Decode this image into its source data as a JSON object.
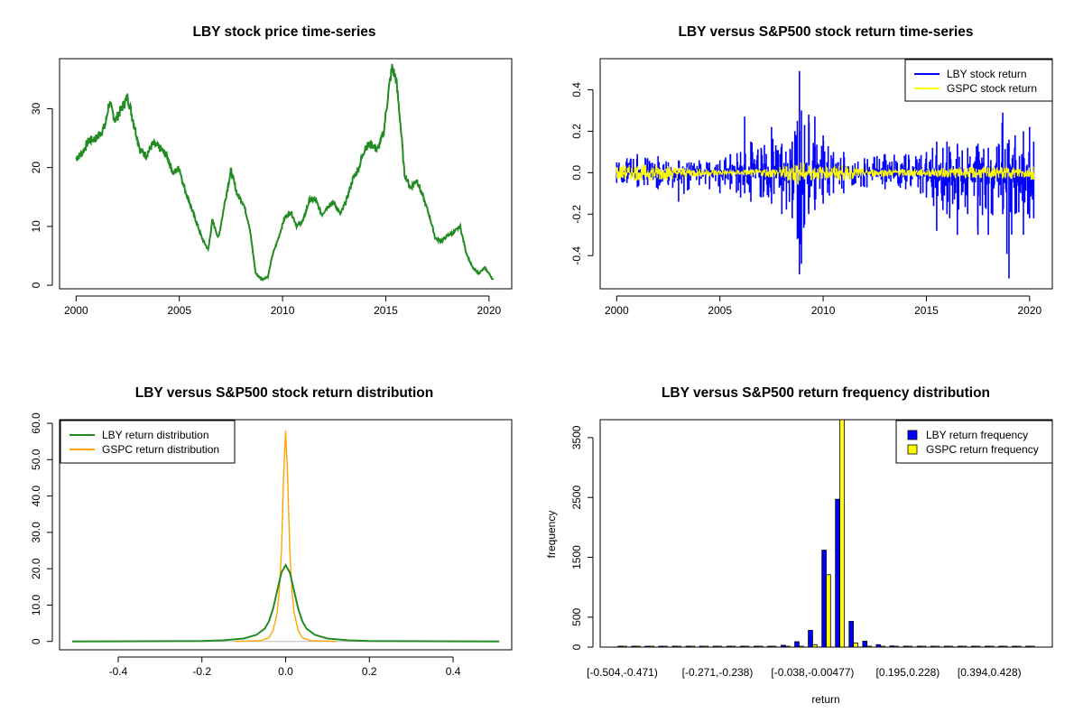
{
  "chart_data": [
    {
      "type": "line",
      "title": "LBY stock price time-series",
      "xlabel": "",
      "ylabel": "",
      "xlim": [
        1999.2,
        2021.1
      ],
      "ylim": [
        -0.6,
        38.5
      ],
      "x_ticks": [
        2000,
        2005,
        2010,
        2015,
        2020
      ],
      "y_ticks": [
        0,
        10,
        20,
        30
      ],
      "series": [
        {
          "color": "#228B22",
          "x": [
            2000.0,
            2000.3,
            2000.6,
            2001.0,
            2001.4,
            2001.6,
            2001.9,
            2002.2,
            2002.5,
            2002.8,
            2003.1,
            2003.4,
            2003.7,
            2004.0,
            2004.4,
            2004.7,
            2005.0,
            2005.2,
            2005.5,
            2005.8,
            2006.1,
            2006.4,
            2006.6,
            2006.9,
            2007.2,
            2007.5,
            2007.8,
            2008.1,
            2008.4,
            2008.7,
            2009.0,
            2009.3,
            2009.5,
            2009.8,
            2010.1,
            2010.4,
            2010.7,
            2011.0,
            2011.3,
            2011.6,
            2011.9,
            2012.2,
            2012.5,
            2012.8,
            2013.1,
            2013.4,
            2013.7,
            2014.0,
            2014.3,
            2014.6,
            2014.9,
            2015.1,
            2015.3,
            2015.5,
            2015.7,
            2015.9,
            2016.2,
            2016.5,
            2016.8,
            2017.1,
            2017.4,
            2017.7,
            2018.0,
            2018.3,
            2018.6,
            2018.9,
            2019.2,
            2019.5,
            2019.8,
            2020.1,
            2020.2
          ],
          "y": [
            21.5,
            22.5,
            24.5,
            25,
            27,
            31,
            28,
            30,
            32,
            27.5,
            23,
            22,
            24,
            23.5,
            22,
            19,
            20,
            17,
            14,
            11,
            8,
            6,
            11,
            8,
            14,
            19.5,
            15.5,
            14,
            10,
            2,
            1,
            1.5,
            5,
            8,
            11.5,
            12.5,
            10,
            11,
            14.5,
            14.5,
            12,
            13.5,
            14,
            12,
            14.5,
            18,
            20,
            23.5,
            24,
            23,
            26,
            32,
            37,
            35,
            28,
            19,
            16.5,
            18,
            15,
            12,
            8,
            7.5,
            8.5,
            9,
            10,
            5.5,
            3,
            2,
            3,
            1.5,
            0.8
          ]
        }
      ]
    },
    {
      "type": "line",
      "title": "LBY versus S&P500 stock return time-series",
      "xlabel": "",
      "ylabel": "",
      "xlim": [
        1999.2,
        2021.1
      ],
      "ylim": [
        -0.56,
        0.55
      ],
      "x_ticks": [
        2000,
        2005,
        2010,
        2015,
        2020
      ],
      "y_ticks": [
        -0.4,
        -0.2,
        0.0,
        0.2,
        0.4
      ],
      "legend": {
        "position": "top-right",
        "entries": [
          "LBY stock return",
          "GSPC stock return"
        ]
      },
      "series": [
        {
          "name": "LBY stock return",
          "color": "#0000ff",
          "x": [
            2000.0,
            2000.5,
            2001.0,
            2001.5,
            2002.0,
            2002.5,
            2003.0,
            2003.5,
            2004.0,
            2004.5,
            2005.0,
            2005.5,
            2006.0,
            2006.2,
            2006.5,
            2007.0,
            2007.5,
            2008.0,
            2008.5,
            2008.75,
            2008.85,
            2008.95,
            2009.1,
            2009.3,
            2009.6,
            2010.0,
            2010.5,
            2011.0,
            2012.0,
            2013.0,
            2014.0,
            2015.0,
            2015.3,
            2015.5,
            2015.8,
            2016.0,
            2016.5,
            2017.0,
            2017.5,
            2018.0,
            2018.5,
            2018.7,
            2019.0,
            2019.3,
            2019.7,
            2020.0,
            2020.2
          ],
          "y_high": [
            0.05,
            0.07,
            0.09,
            0.07,
            0.08,
            0.05,
            0.06,
            0.05,
            0.06,
            0.05,
            0.06,
            0.09,
            0.1,
            0.27,
            0.15,
            0.12,
            0.22,
            0.14,
            0.15,
            0.25,
            0.49,
            0.3,
            0.23,
            0.28,
            0.27,
            0.18,
            0.1,
            0.1,
            0.07,
            0.09,
            0.09,
            0.1,
            0.12,
            0.15,
            0.12,
            0.15,
            0.14,
            0.12,
            0.14,
            0.12,
            0.14,
            0.29,
            0.16,
            0.18,
            0.2,
            0.22,
            0.15
          ],
          "y_low": [
            -0.05,
            -0.05,
            -0.07,
            -0.06,
            -0.08,
            -0.06,
            -0.14,
            -0.08,
            -0.06,
            -0.08,
            -0.1,
            -0.08,
            -0.12,
            -0.1,
            -0.14,
            -0.12,
            -0.15,
            -0.2,
            -0.22,
            -0.32,
            -0.49,
            -0.44,
            -0.25,
            -0.2,
            -0.18,
            -0.15,
            -0.1,
            -0.1,
            -0.07,
            -0.08,
            -0.08,
            -0.12,
            -0.12,
            -0.28,
            -0.18,
            -0.2,
            -0.3,
            -0.2,
            -0.3,
            -0.3,
            -0.12,
            -0.2,
            -0.51,
            -0.2,
            -0.3,
            -0.22,
            -0.22
          ]
        },
        {
          "name": "GSPC stock return",
          "color": "#ffff00",
          "x": [
            2000.0,
            2001.0,
            2002.0,
            2003.0,
            2004.0,
            2006.0,
            2007.0,
            2008.0,
            2008.8,
            2009.2,
            2010.0,
            2011.0,
            2012.0,
            2015.0,
            2016.0,
            2018.0,
            2019.0,
            2020.0,
            2020.2
          ],
          "y_high": [
            0.035,
            0.04,
            0.04,
            0.03,
            0.02,
            0.015,
            0.02,
            0.03,
            0.06,
            0.045,
            0.03,
            0.04,
            0.02,
            0.02,
            0.025,
            0.03,
            0.03,
            0.03,
            0.04
          ],
          "y_low": [
            -0.035,
            -0.04,
            -0.04,
            -0.03,
            -0.02,
            -0.015,
            -0.02,
            -0.03,
            -0.06,
            -0.045,
            -0.03,
            -0.04,
            -0.02,
            -0.02,
            -0.025,
            -0.03,
            -0.03,
            -0.03,
            -0.04
          ]
        }
      ]
    },
    {
      "type": "line",
      "title": "LBY versus S&P500 stock return distribution",
      "xlabel": "",
      "ylabel": "",
      "xlim": [
        -0.54,
        0.54
      ],
      "ylim": [
        -2.3,
        61
      ],
      "x_ticks": [
        -0.4,
        -0.2,
        0.0,
        0.2,
        0.4
      ],
      "y_ticks": [
        0,
        10,
        20,
        30,
        40,
        50,
        60
      ],
      "legend": {
        "position": "top-left",
        "entries": [
          "LBY return distribution",
          "GSPC return distribution"
        ]
      },
      "series": [
        {
          "name": "LBY return distribution",
          "color": "#228B22",
          "x": [
            -0.51,
            -0.2,
            -0.15,
            -0.1,
            -0.07,
            -0.05,
            -0.04,
            -0.03,
            -0.02,
            -0.01,
            0.0,
            0.01,
            0.02,
            0.03,
            0.04,
            0.05,
            0.07,
            0.1,
            0.15,
            0.2,
            0.51
          ],
          "y": [
            0,
            0.1,
            0.3,
            0.8,
            1.8,
            3.5,
            5.5,
            9,
            14,
            19,
            21,
            19,
            14,
            9,
            5.5,
            3.5,
            1.8,
            0.8,
            0.3,
            0.1,
            0
          ]
        },
        {
          "name": "GSPC return distribution",
          "color": "#FFA500",
          "x": [
            -0.12,
            -0.06,
            -0.04,
            -0.03,
            -0.02,
            -0.015,
            -0.01,
            -0.005,
            0.0,
            0.005,
            0.01,
            0.015,
            0.02,
            0.03,
            0.04,
            0.06,
            0.12
          ],
          "y": [
            0,
            0.2,
            1,
            3,
            8,
            14,
            25,
            45,
            58,
            45,
            25,
            14,
            8,
            3,
            1,
            0.2,
            0
          ]
        }
      ]
    },
    {
      "type": "bar",
      "title": "LBY versus S&P500 return frequency distribution",
      "xlabel": "return",
      "ylabel": "frequency",
      "ylim": [
        0,
        3800
      ],
      "y_ticks": [
        0,
        500,
        1500,
        2500,
        3500
      ],
      "x_tick_labels": [
        {
          "label": "[-0.504,-0.471)",
          "index": 0
        },
        {
          "label": "[-0.271,-0.238)",
          "index": 7
        },
        {
          "label": "[-0.038,-0.00477)",
          "index": 14
        },
        {
          "label": "[0.195,0.228)",
          "index": 21
        },
        {
          "label": "[0.394,0.428)",
          "index": 27
        }
      ],
      "legend": {
        "position": "top-right",
        "entries": [
          "LBY return frequency",
          "GSPC return frequency"
        ]
      },
      "series": [
        {
          "name": "LBY return frequency",
          "color": "#0000ff",
          "values": [
            1,
            1,
            1,
            2,
            2,
            3,
            4,
            5,
            6,
            8,
            10,
            15,
            30,
            90,
            280,
            1620,
            2470,
            430,
            100,
            40,
            20,
            10,
            6,
            4,
            3,
            2,
            2,
            1,
            1,
            1,
            1
          ]
        },
        {
          "name": "GSPC return frequency",
          "color": "#ffff00",
          "values": [
            0,
            0,
            0,
            0,
            0,
            0,
            0,
            0,
            0,
            0,
            0,
            0,
            2,
            8,
            40,
            1210,
            3800,
            70,
            6,
            2,
            0,
            0,
            0,
            0,
            0,
            0,
            0,
            0,
            0,
            0,
            0
          ]
        }
      ]
    }
  ]
}
